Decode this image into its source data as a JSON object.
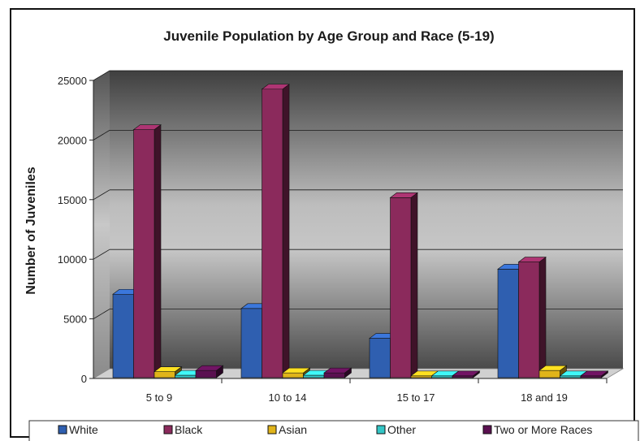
{
  "chart_data": {
    "type": "bar",
    "title": "Juvenile Population by Age Group and Race (5-19)",
    "xlabel": "",
    "ylabel": "Number of Juveniles",
    "ylim": [
      0,
      25000
    ],
    "yticks": [
      "0",
      "5000",
      "10000",
      "15000",
      "20000",
      "25000"
    ],
    "categories": [
      "5 to 9",
      "10 to 14",
      "15 to 17",
      "18 and 19"
    ],
    "series": [
      {
        "name": "White",
        "values": [
          7000,
          5800,
          3300,
          9100
        ],
        "color": "#2f5fb0"
      },
      {
        "name": "Black",
        "values": [
          20800,
          24200,
          15100,
          9700
        ],
        "color": "#8b2a5c"
      },
      {
        "name": "Asian",
        "values": [
          500,
          400,
          150,
          600
        ],
        "color": "#e0b41a"
      },
      {
        "name": "Other",
        "values": [
          200,
          200,
          150,
          150
        ],
        "color": "#33c6c6"
      },
      {
        "name": "Two or More Races",
        "values": [
          600,
          400,
          150,
          150
        ],
        "color": "#5a1050"
      }
    ],
    "grid": true,
    "legend_position": "bottom"
  }
}
